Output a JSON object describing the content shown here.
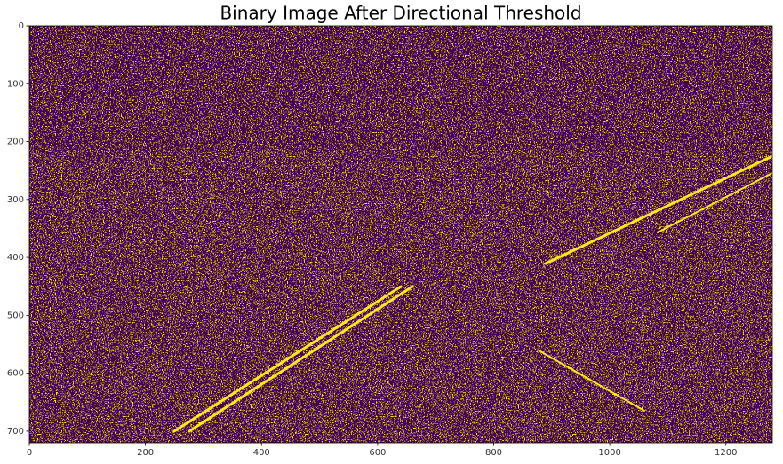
{
  "chart_data": {
    "type": "image",
    "title": "Binary Image After Directional Threshold",
    "xlim": [
      0,
      1280
    ],
    "ylim": [
      720,
      0
    ],
    "xticks": [
      0,
      200,
      400,
      600,
      800,
      1000,
      1200
    ],
    "yticks": [
      0,
      100,
      200,
      300,
      400,
      500,
      600,
      700
    ],
    "colors": [
      "#440154",
      "#fde725"
    ]
  }
}
